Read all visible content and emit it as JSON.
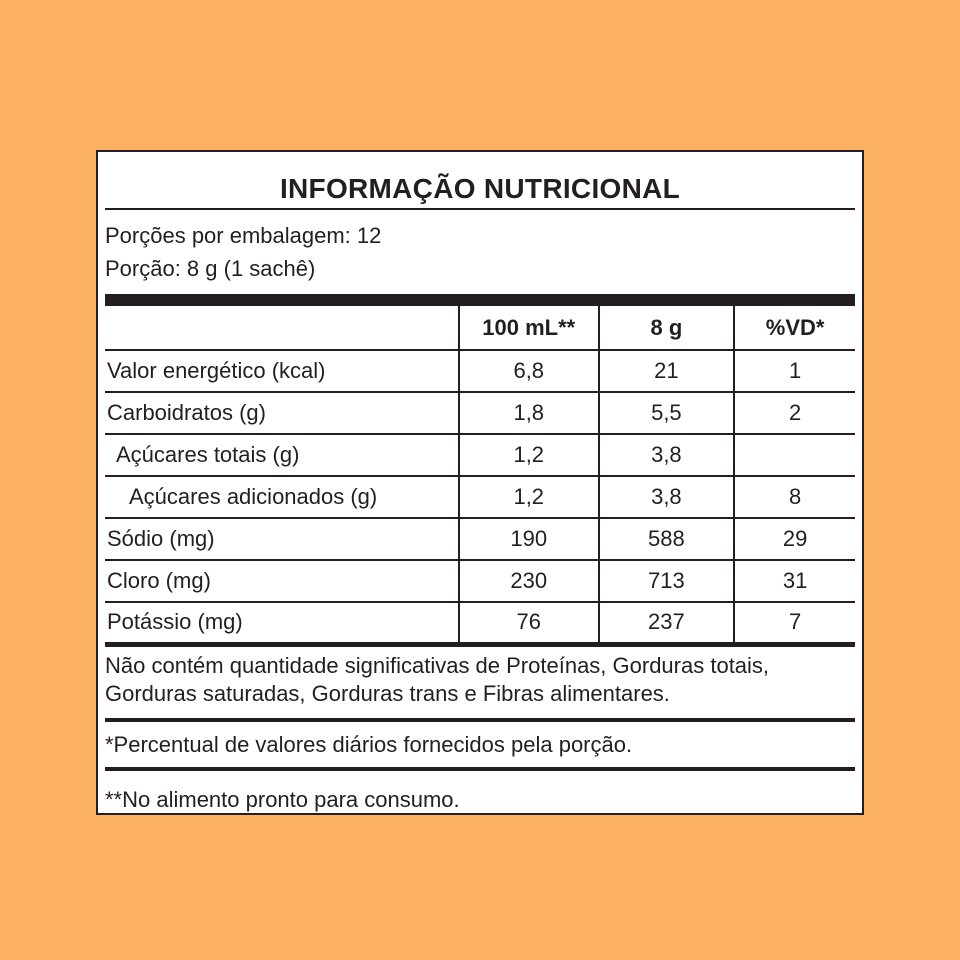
{
  "panel": {
    "title": "INFORMAÇÃO NUTRICIONAL",
    "servings_line": "Porções por embalagem: 12",
    "portion_line": "Porção: 8 g (1 sachê)"
  },
  "table": {
    "columns": [
      "",
      "100 mL**",
      "8 g",
      "%VD*"
    ],
    "rows": [
      {
        "label": "Valor energético (kcal)",
        "indent": 0,
        "per_100ml": "6,8",
        "per_portion": "21",
        "vd": "1"
      },
      {
        "label": "Carboidratos (g)",
        "indent": 0,
        "per_100ml": "1,8",
        "per_portion": "5,5",
        "vd": "2"
      },
      {
        "label": "Açúcares totais (g)",
        "indent": 1,
        "per_100ml": "1,2",
        "per_portion": "3,8",
        "vd": ""
      },
      {
        "label": "Açúcares adicionados (g)",
        "indent": 2,
        "per_100ml": "1,2",
        "per_portion": "3,8",
        "vd": "8"
      },
      {
        "label": "Sódio (mg)",
        "indent": 0,
        "per_100ml": "190",
        "per_portion": "588",
        "vd": "29"
      },
      {
        "label": "Cloro (mg)",
        "indent": 0,
        "per_100ml": "230",
        "per_portion": "713",
        "vd": "31"
      },
      {
        "label": "Potássio (mg)",
        "indent": 0,
        "per_100ml": "76",
        "per_portion": "237",
        "vd": "7"
      }
    ]
  },
  "notes": {
    "no_significant": "Não contém quantidade significativas de Proteínas, Gorduras totais, Gorduras saturadas, Gorduras trans e Fibras alimentares.",
    "footnote_vd": "*Percentual de valores diários fornecidos pela porção.",
    "footnote_prepared": "**No alimento pronto para consumo."
  },
  "colors": {
    "background": "#FBB062",
    "panel": "#FFFFFF",
    "ink": "#231F20"
  }
}
